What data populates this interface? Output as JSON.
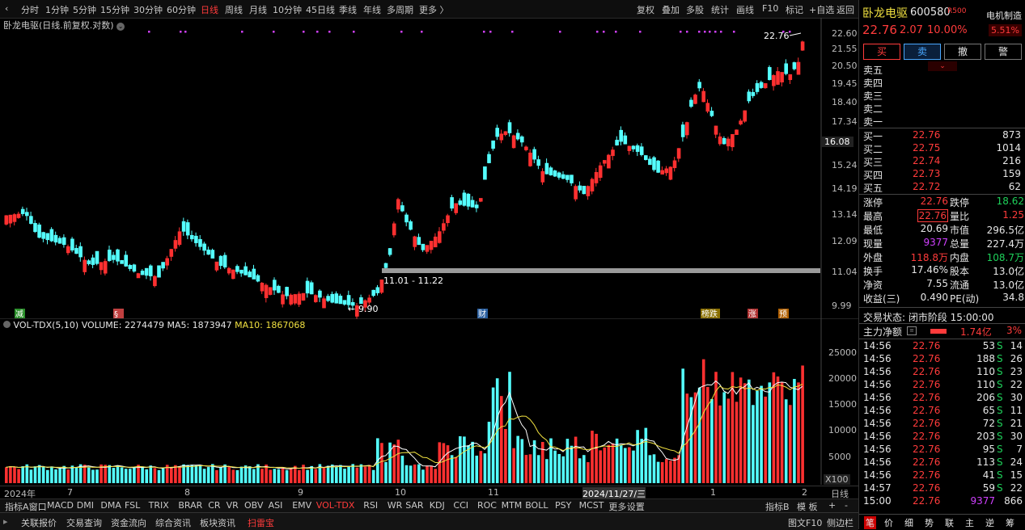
{
  "toolbar": {
    "periods": [
      "分时",
      "1分钟",
      "5分钟",
      "15分钟",
      "30分钟",
      "60分钟",
      "日线",
      "周线",
      "月线",
      "10分钟",
      "45日线",
      "季线",
      "年线",
      "多周期",
      "更多 〉"
    ],
    "active_period": "日线",
    "right": [
      "复权",
      "叠加",
      "多股",
      "统计",
      "画线",
      "F10",
      "标记",
      "+自选",
      "返回"
    ]
  },
  "chart": {
    "title": "卧龙电驱(日线.前复权.对数)",
    "price_axis": [
      "22.60",
      "21.55",
      "20.50",
      "19.45",
      "18.40",
      "17.34",
      "16.08",
      "15.24",
      "14.19",
      "13.14",
      "12.09",
      "11.04",
      "9.99"
    ],
    "current_tag": "16.08",
    "high_label": "22.76",
    "low_label": "9.90",
    "range_label": "11.01 - 11.22",
    "markers": {
      "m1": "减",
      "m2": "§",
      "m3": "财",
      "m4": "榜跌",
      "m5": "涨",
      "m6": "预"
    }
  },
  "volume": {
    "info_name": "VOL-TDX(5,10)",
    "info_volume": "VOLUME: 2274479",
    "info_ma5": "MA5: 1873947",
    "info_ma10": "MA10: 1867068",
    "axis": [
      "25000",
      "20000",
      "15000",
      "10000",
      "5000"
    ],
    "unit": "X100"
  },
  "date_axis": [
    "2024年",
    "7",
    "8",
    "9",
    "10",
    "11",
    "2024/11/27/三",
    "1",
    "2"
  ],
  "date_axis_right": "日线",
  "bottom_tabs": [
    "指标A",
    "窗口",
    "MACD",
    "DMI",
    "DMA",
    "FSL",
    "TRIX",
    "BRAR",
    "CR",
    "VR",
    "OBV",
    "ASI",
    "EMV",
    "VOL-TDX",
    "RSI",
    "WR",
    "SAR",
    "KDJ",
    "CCI",
    "ROC",
    "MTM",
    "BOLL",
    "PSY",
    "MCST",
    "更多",
    "设置"
  ],
  "bottom_tabs_active": "VOL-TDX",
  "bottom_right": [
    "指标B",
    "模 板",
    "+",
    "-"
  ],
  "status": [
    "关联报价",
    "交易查询",
    "资金流向",
    "综合资讯",
    "板块资讯",
    "扫雷宝"
  ],
  "status_right": [
    "图文F10",
    "侧边栏"
  ],
  "panel": {
    "name": "卧龙电驱",
    "code": "600580",
    "tag": "R",
    "sub": "500",
    "sector": "电机制造",
    "sector_pct": "5.51%",
    "price": "22.76",
    "change": "2.07",
    "pct": "10.00%",
    "buttons": [
      "买",
      "卖",
      "撤",
      "警"
    ],
    "sell_labels": [
      "卖五",
      "卖四",
      "卖三",
      "卖二",
      "卖一"
    ],
    "buy": [
      {
        "label": "买一",
        "price": "22.76",
        "vol": "873"
      },
      {
        "label": "买二",
        "price": "22.75",
        "vol": "1014"
      },
      {
        "label": "买三",
        "price": "22.74",
        "vol": "216"
      },
      {
        "label": "买四",
        "price": "22.73",
        "vol": "159"
      },
      {
        "label": "买五",
        "price": "22.72",
        "vol": "62"
      }
    ],
    "stats": [
      {
        "l1": "涨停",
        "v1": "22.76",
        "l2": "跌停",
        "v2": "18.62"
      },
      {
        "l1": "最高",
        "v1": "22.76",
        "l2": "量比",
        "v2": "1.25"
      },
      {
        "l1": "最低",
        "v1": "20.69",
        "l2": "市值",
        "v2": "296.5亿"
      },
      {
        "l1": "现量",
        "v1": "9377",
        "l2": "总量",
        "v2": "227.4万"
      },
      {
        "l1": "外盘",
        "v1": "118.8万",
        "l2": "内盘",
        "v2": "108.7万"
      },
      {
        "l1": "换手",
        "v1": "17.46%",
        "l2": "股本",
        "v2": "13.0亿"
      },
      {
        "l1": "净资",
        "v1": "7.55",
        "l2": "流通",
        "v2": "13.0亿"
      },
      {
        "l1": "收益(三)",
        "v1": "0.490",
        "l2": "PE(动)",
        "v2": "34.8"
      }
    ],
    "trade_status": "交易状态: 闭市阶段 15:00:00",
    "main_flow_label": "主力净额",
    "main_flow_value": "1.74亿",
    "main_flow_pct": "3%",
    "ticks": [
      {
        "t": "14:56",
        "p": "22.76",
        "v": "53",
        "s": "S",
        "n": "14"
      },
      {
        "t": "14:56",
        "p": "22.76",
        "v": "188",
        "s": "S",
        "n": "26"
      },
      {
        "t": "14:56",
        "p": "22.76",
        "v": "110",
        "s": "S",
        "n": "23"
      },
      {
        "t": "14:56",
        "p": "22.76",
        "v": "110",
        "s": "S",
        "n": "22"
      },
      {
        "t": "14:56",
        "p": "22.76",
        "v": "206",
        "s": "S",
        "n": "30"
      },
      {
        "t": "14:56",
        "p": "22.76",
        "v": "65",
        "s": "S",
        "n": "11"
      },
      {
        "t": "14:56",
        "p": "22.76",
        "v": "72",
        "s": "S",
        "n": "21"
      },
      {
        "t": "14:56",
        "p": "22.76",
        "v": "203",
        "s": "S",
        "n": "30"
      },
      {
        "t": "14:56",
        "p": "22.76",
        "v": "95",
        "s": "S",
        "n": "7"
      },
      {
        "t": "14:56",
        "p": "22.76",
        "v": "113",
        "s": "S",
        "n": "24"
      },
      {
        "t": "14:56",
        "p": "22.76",
        "v": "41",
        "s": "S",
        "n": "15"
      },
      {
        "t": "14:57",
        "p": "22.76",
        "v": "59",
        "s": "S",
        "n": "22"
      },
      {
        "t": "15:00",
        "p": "22.76",
        "v": "9377",
        "s": "",
        "n": "866"
      }
    ],
    "footer_tabs": [
      "笔",
      "价",
      "细",
      "势",
      "联",
      "主",
      "逆",
      "筹"
    ]
  }
}
